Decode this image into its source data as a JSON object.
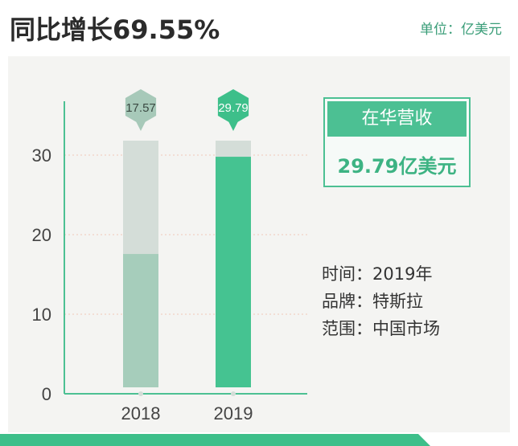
{
  "header": {
    "headline": "同比增长69.55%",
    "unit": "单位：亿美元"
  },
  "info_card": {
    "title": "在华营收",
    "value": "29.79亿美元"
  },
  "meta": [
    {
      "text": "时间：2019年"
    },
    {
      "text": "品牌：特斯拉"
    },
    {
      "text": "范围：中国市场"
    }
  ],
  "colors": {
    "accent": "#4cc093",
    "bar_2018": "#a6cdbb",
    "bar_2019": "#45c391",
    "track": "#d4ddd8",
    "tag_2018": "#a7c9b9",
    "tag_2019": "#3dbf8a"
  },
  "chart_data": {
    "type": "bar",
    "categories": [
      "2018",
      "2019"
    ],
    "values": [
      17.57,
      29.79
    ],
    "value_labels": [
      "17.57",
      "29.79"
    ],
    "yticks": [
      0,
      10,
      20,
      30
    ],
    "ylim": [
      0,
      31.5
    ],
    "grid": true,
    "title": "",
    "xlabel": "",
    "ylabel": ""
  }
}
